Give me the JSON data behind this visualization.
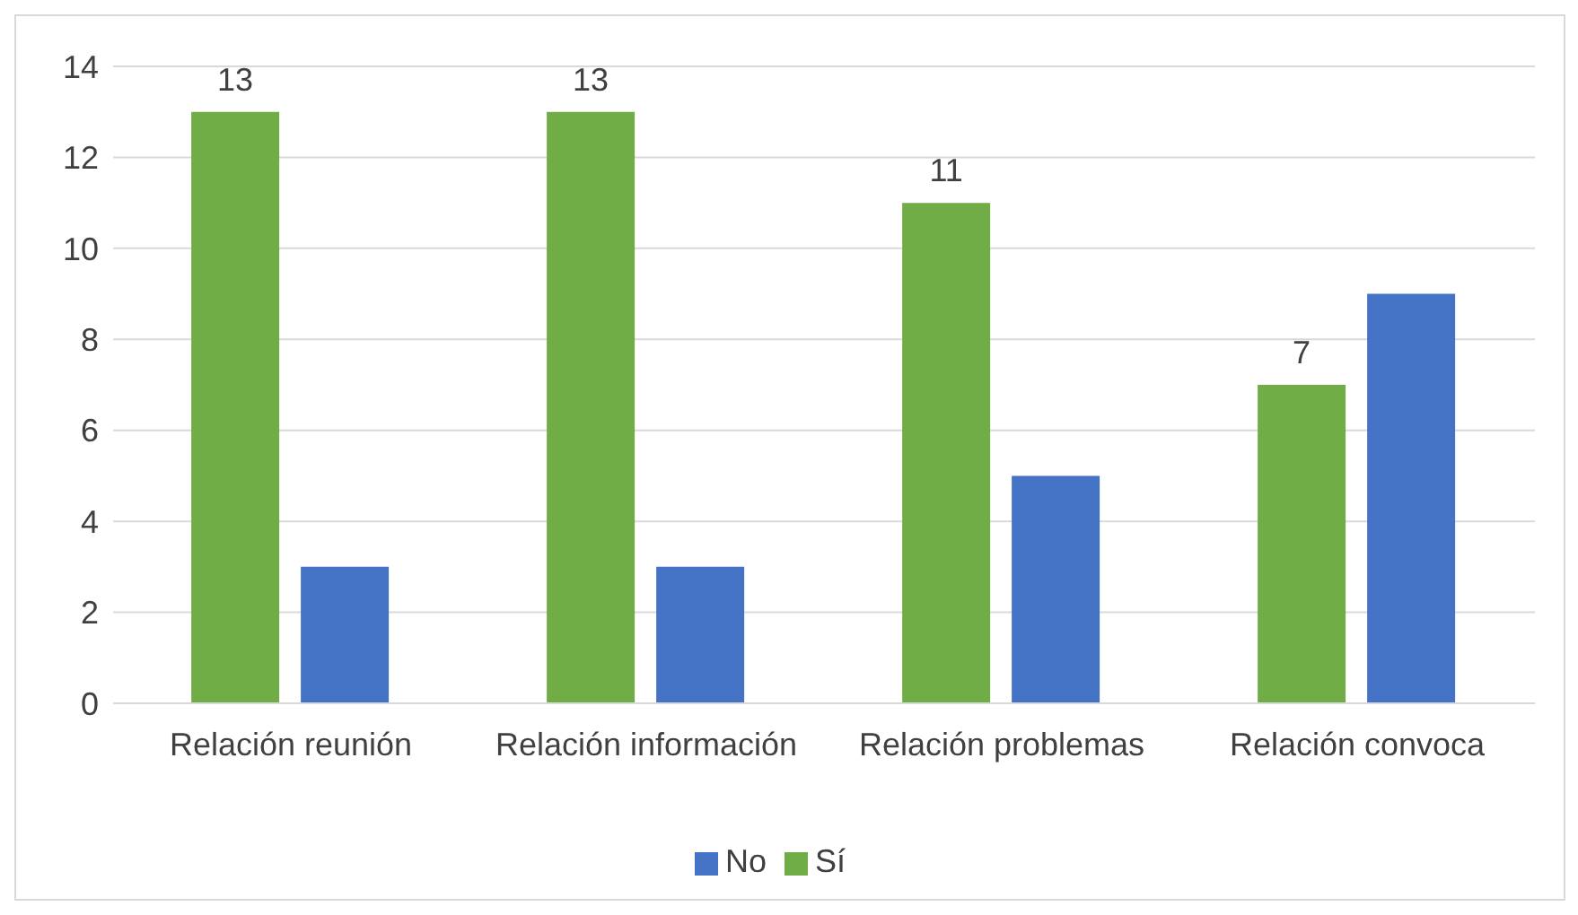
{
  "chart_data": {
    "type": "bar",
    "categories": [
      "Relación reunión",
      "Relación información",
      "Relación problemas",
      "Relación convoca"
    ],
    "series": [
      {
        "name": "Sí",
        "color": "#70ad47",
        "values": [
          13,
          13,
          11,
          7
        ],
        "value_labels": [
          "13",
          "13",
          "11",
          "7"
        ]
      },
      {
        "name": "No",
        "color": "#4472c4",
        "values": [
          3,
          3,
          5,
          9
        ]
      }
    ],
    "ylim": [
      0,
      14
    ],
    "yticks": [
      0,
      2,
      4,
      6,
      8,
      10,
      12,
      14
    ],
    "grid": "y",
    "legend": "bottom"
  }
}
